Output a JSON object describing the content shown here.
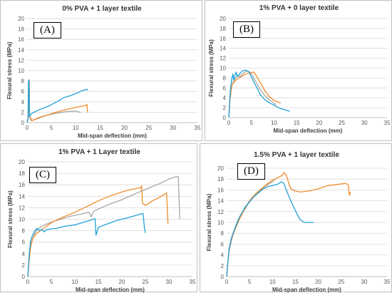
{
  "colors": {
    "blue": "#1fa0d8",
    "orange": "#f08a2a",
    "gray": "#a6a6a6"
  },
  "chart_data": [
    {
      "type": "line",
      "panel_label": "(A)",
      "title": "0% PVA + 1 layer textile",
      "xlabel": "Mid-span deflection (mm)",
      "ylabel": "Flexural stress (MPa)",
      "xlim": [
        0,
        35
      ],
      "ylim": [
        0,
        20
      ],
      "xticks": [
        0,
        5,
        10,
        15,
        20,
        25,
        30,
        35
      ],
      "yticks": [
        0,
        2,
        4,
        6,
        8,
        10,
        12,
        14,
        16,
        18,
        20
      ],
      "grid": true,
      "series": [
        {
          "color": "gray",
          "points": [
            [
              0,
              0
            ],
            [
              0.2,
              1
            ],
            [
              0.3,
              6.5
            ],
            [
              0.35,
              7.3
            ],
            [
              0.4,
              8.2
            ],
            [
              0.45,
              1.2
            ],
            [
              0.8,
              0.4
            ],
            [
              2,
              0.7
            ],
            [
              4,
              1.4
            ],
            [
              6,
              1.8
            ],
            [
              8,
              2.1
            ],
            [
              10,
              2.2
            ],
            [
              10.5,
              2.1
            ],
            [
              11,
              1.9
            ]
          ]
        },
        {
          "color": "orange",
          "points": [
            [
              0,
              0
            ],
            [
              0.2,
              1
            ],
            [
              0.35,
              6.2
            ],
            [
              0.4,
              7.3
            ],
            [
              0.45,
              8.2
            ],
            [
              0.5,
              1.2
            ],
            [
              1,
              0.4
            ],
            [
              2.5,
              1.0
            ],
            [
              4,
              1.4
            ],
            [
              6,
              2.0
            ],
            [
              8,
              2.5
            ],
            [
              10,
              2.9
            ],
            [
              12,
              3.3
            ],
            [
              12.3,
              3.5
            ],
            [
              12.4,
              2.2
            ],
            [
              12.5,
              1.9
            ]
          ]
        },
        {
          "color": "blue",
          "points": [
            [
              0,
              0
            ],
            [
              0.2,
              0.8
            ],
            [
              0.3,
              7.8
            ],
            [
              0.35,
              8.2
            ],
            [
              0.4,
              7.9
            ],
            [
              0.5,
              1.2
            ],
            [
              1,
              1.8
            ],
            [
              2.5,
              2.5
            ],
            [
              4.5,
              3.2
            ],
            [
              6.5,
              4.2
            ],
            [
              7.5,
              4.8
            ],
            [
              9,
              5.2
            ],
            [
              10.5,
              5.8
            ],
            [
              11.5,
              6.2
            ],
            [
              12.3,
              6.4
            ],
            [
              12.5,
              6.2
            ]
          ]
        }
      ]
    },
    {
      "type": "line",
      "panel_label": "(B)",
      "title": "1% PVA + 0 layer textile",
      "xlabel": "Mid-span deflection (mm)",
      "ylabel": "Flexural stress (MPa)",
      "xlim": [
        0,
        35
      ],
      "ylim": [
        0,
        20
      ],
      "xticks": [
        0,
        5,
        10,
        15,
        20,
        25,
        30,
        35
      ],
      "yticks": [
        0,
        2,
        4,
        6,
        8,
        10,
        12,
        14,
        16,
        18,
        20
      ],
      "grid": true,
      "series": [
        {
          "color": "gray",
          "points": [
            [
              0,
              0
            ],
            [
              0.3,
              4
            ],
            [
              0.6,
              6.2
            ],
            [
              1,
              7.2
            ],
            [
              1.5,
              8
            ],
            [
              2,
              8.6
            ],
            [
              2.5,
              8.2
            ],
            [
              3,
              8.8
            ],
            [
              3.5,
              9.2
            ],
            [
              4,
              9.4
            ],
            [
              4.5,
              9.3
            ],
            [
              5,
              8.8
            ],
            [
              6,
              7.2
            ],
            [
              7,
              5.6
            ],
            [
              8,
              4.4
            ],
            [
              9,
              3.6
            ],
            [
              10,
              2.9
            ],
            [
              10.5,
              2.6
            ]
          ]
        },
        {
          "color": "orange",
          "points": [
            [
              0,
              0
            ],
            [
              0.3,
              4
            ],
            [
              0.7,
              6.5
            ],
            [
              1,
              7
            ],
            [
              1.5,
              7.5
            ],
            [
              2.2,
              8
            ],
            [
              3,
              8.4
            ],
            [
              4,
              8.9
            ],
            [
              5,
              9.1
            ],
            [
              5.5,
              9.2
            ],
            [
              6,
              8.6
            ],
            [
              7,
              7
            ],
            [
              8,
              5.4
            ],
            [
              9,
              4.2
            ],
            [
              10,
              3.5
            ],
            [
              11,
              3.1
            ],
            [
              11.5,
              3.0
            ]
          ]
        },
        {
          "color": "blue",
          "points": [
            [
              0,
              0
            ],
            [
              0.3,
              5
            ],
            [
              0.6,
              7.5
            ],
            [
              0.9,
              8.8
            ],
            [
              1.1,
              7.6
            ],
            [
              1.3,
              8.4
            ],
            [
              1.6,
              9.2
            ],
            [
              1.9,
              8.3
            ],
            [
              2.2,
              8.5
            ],
            [
              2.6,
              9.1
            ],
            [
              3,
              9.4
            ],
            [
              3.5,
              9.6
            ],
            [
              4,
              9.5
            ],
            [
              4.5,
              9.2
            ],
            [
              5,
              8.2
            ],
            [
              6,
              6.4
            ],
            [
              7,
              4.6
            ],
            [
              8,
              3.6
            ],
            [
              9,
              3.0
            ],
            [
              10,
              2.5
            ],
            [
              11,
              2.0
            ],
            [
              12,
              1.7
            ],
            [
              13,
              1.4
            ],
            [
              13.5,
              1.3
            ]
          ]
        }
      ]
    },
    {
      "type": "line",
      "panel_label": "(C)",
      "title": "1% PVA + 1 Layer textile",
      "xlabel": "Mid-span deflection (mm)",
      "ylabel": "Flexural stress (MPa)",
      "xlim": [
        0,
        35
      ],
      "ylim": [
        0,
        20
      ],
      "xticks": [
        0,
        5,
        10,
        15,
        20,
        25,
        30,
        35
      ],
      "yticks": [
        0,
        2,
        4,
        6,
        8,
        10,
        12,
        14,
        16,
        18,
        20
      ],
      "grid": true,
      "series": [
        {
          "color": "gray",
          "points": [
            [
              0,
              0
            ],
            [
              0.3,
              3
            ],
            [
              0.6,
              5.5
            ],
            [
              1,
              6.5
            ],
            [
              1.5,
              7.5
            ],
            [
              2,
              8.2
            ],
            [
              3,
              8.8
            ],
            [
              5,
              9.5
            ],
            [
              7,
              10
            ],
            [
              9,
              10.5
            ],
            [
              12,
              11
            ],
            [
              13,
              11.2
            ],
            [
              13.5,
              10.4
            ],
            [
              14,
              11.4
            ],
            [
              17,
              12.5
            ],
            [
              20,
              13.4
            ],
            [
              23,
              14.5
            ],
            [
              25,
              15.2
            ],
            [
              28,
              16.2
            ],
            [
              30,
              17
            ],
            [
              31.5,
              17.4
            ],
            [
              32,
              17.4
            ],
            [
              32.3,
              10
            ]
          ]
        },
        {
          "color": "orange",
          "points": [
            [
              0,
              0
            ],
            [
              0.3,
              3
            ],
            [
              0.6,
              5.2
            ],
            [
              1,
              6.5
            ],
            [
              1.5,
              7.2
            ],
            [
              2,
              7.6
            ],
            [
              3,
              8.2
            ],
            [
              5,
              9.4
            ],
            [
              7,
              10.2
            ],
            [
              10,
              11.2
            ],
            [
              12,
              12
            ],
            [
              15,
              13.2
            ],
            [
              18,
              14.2
            ],
            [
              21,
              15
            ],
            [
              24,
              15.5
            ],
            [
              24.2,
              15.8
            ],
            [
              24.4,
              12.8
            ],
            [
              25,
              12.4
            ],
            [
              26.5,
              13.2
            ],
            [
              28,
              13.8
            ],
            [
              29.5,
              14.6
            ],
            [
              29.8,
              9.2
            ]
          ]
        },
        {
          "color": "blue",
          "points": [
            [
              0,
              0
            ],
            [
              0.3,
              4
            ],
            [
              0.6,
              6.2
            ],
            [
              1,
              7.2
            ],
            [
              1.5,
              8
            ],
            [
              2,
              8.4
            ],
            [
              2.5,
              8
            ],
            [
              3,
              8.2
            ],
            [
              3.5,
              7.8
            ],
            [
              4,
              8.2
            ],
            [
              6,
              8.4
            ],
            [
              8,
              8.8
            ],
            [
              10,
              9
            ],
            [
              12,
              9.5
            ],
            [
              14,
              10
            ],
            [
              14.3,
              10.1
            ],
            [
              14.5,
              7.2
            ],
            [
              15,
              8.6
            ],
            [
              17,
              9.2
            ],
            [
              19,
              9.8
            ],
            [
              21,
              10.2
            ],
            [
              24,
              10.9
            ],
            [
              24.5,
              11
            ],
            [
              24.8,
              8.4
            ],
            [
              25,
              7.6
            ]
          ]
        }
      ]
    },
    {
      "type": "line",
      "panel_label": "(D)",
      "title": "1.5% PVA + 1 layer textile",
      "xlabel": "Mid-span deflection (mm)",
      "ylabel": "Flexural stress (MPa)",
      "xlim": [
        0,
        35
      ],
      "ylim": [
        0,
        20
      ],
      "xticks": [
        0,
        5,
        10,
        15,
        20,
        25,
        30,
        35
      ],
      "yticks": [
        0,
        2,
        4,
        6,
        8,
        10,
        12,
        14,
        16,
        18,
        20
      ],
      "grid": true,
      "series": [
        {
          "color": "gray",
          "points": [
            [
              0,
              0
            ],
            [
              0.2,
              2
            ],
            [
              0.5,
              4.5
            ],
            [
              1,
              6.5
            ],
            [
              1.5,
              8
            ],
            [
              2,
              9
            ],
            [
              2.5,
              10
            ],
            [
              3,
              11
            ],
            [
              3.5,
              11.8
            ],
            [
              4,
              12.5
            ],
            [
              5,
              13.8
            ],
            [
              6,
              14.8
            ],
            [
              7,
              15.6
            ],
            [
              8,
              16.4
            ],
            [
              9,
              17
            ],
            [
              10,
              17.5
            ],
            [
              10.5,
              17.8
            ]
          ]
        },
        {
          "color": "orange",
          "points": [
            [
              0,
              0
            ],
            [
              0.2,
              2
            ],
            [
              0.5,
              4.8
            ],
            [
              1,
              6.8
            ],
            [
              1.5,
              8
            ],
            [
              2,
              9.2
            ],
            [
              2.5,
              10.2
            ],
            [
              3,
              11
            ],
            [
              3.5,
              11.8
            ],
            [
              4,
              12.6
            ],
            [
              5,
              14
            ],
            [
              6,
              15
            ],
            [
              7,
              15.8
            ],
            [
              8,
              16.5
            ],
            [
              9,
              17.2
            ],
            [
              10,
              17.8
            ],
            [
              11,
              18.2
            ],
            [
              12,
              18.6
            ],
            [
              12.5,
              19.2
            ],
            [
              13,
              18.8
            ],
            [
              13.5,
              17.4
            ],
            [
              14,
              16.2
            ],
            [
              15,
              15.8
            ],
            [
              16,
              15.6
            ],
            [
              18,
              15.8
            ],
            [
              20,
              16.2
            ],
            [
              22,
              16.8
            ],
            [
              24,
              17
            ],
            [
              26,
              17.2
            ],
            [
              26.5,
              17
            ],
            [
              26.8,
              15
            ],
            [
              27,
              15.6
            ]
          ]
        },
        {
          "color": "blue",
          "points": [
            [
              0,
              0
            ],
            [
              0.2,
              2
            ],
            [
              0.5,
              5
            ],
            [
              1,
              7
            ],
            [
              1.5,
              8.2
            ],
            [
              2,
              9.4
            ],
            [
              2.5,
              10.5
            ],
            [
              3,
              11.3
            ],
            [
              3.5,
              12
            ],
            [
              4,
              12.8
            ],
            [
              5,
              13.8
            ],
            [
              6,
              14.8
            ],
            [
              7,
              15.5
            ],
            [
              8,
              16.2
            ],
            [
              9,
              16.6
            ],
            [
              10,
              16.8
            ],
            [
              11,
              17
            ],
            [
              12,
              17.5
            ],
            [
              12.5,
              17.2
            ],
            [
              13,
              16
            ],
            [
              14,
              14
            ],
            [
              15,
              12.2
            ],
            [
              16,
              10.5
            ],
            [
              17,
              10
            ],
            [
              18,
              10
            ],
            [
              19,
              10
            ]
          ]
        }
      ]
    }
  ]
}
